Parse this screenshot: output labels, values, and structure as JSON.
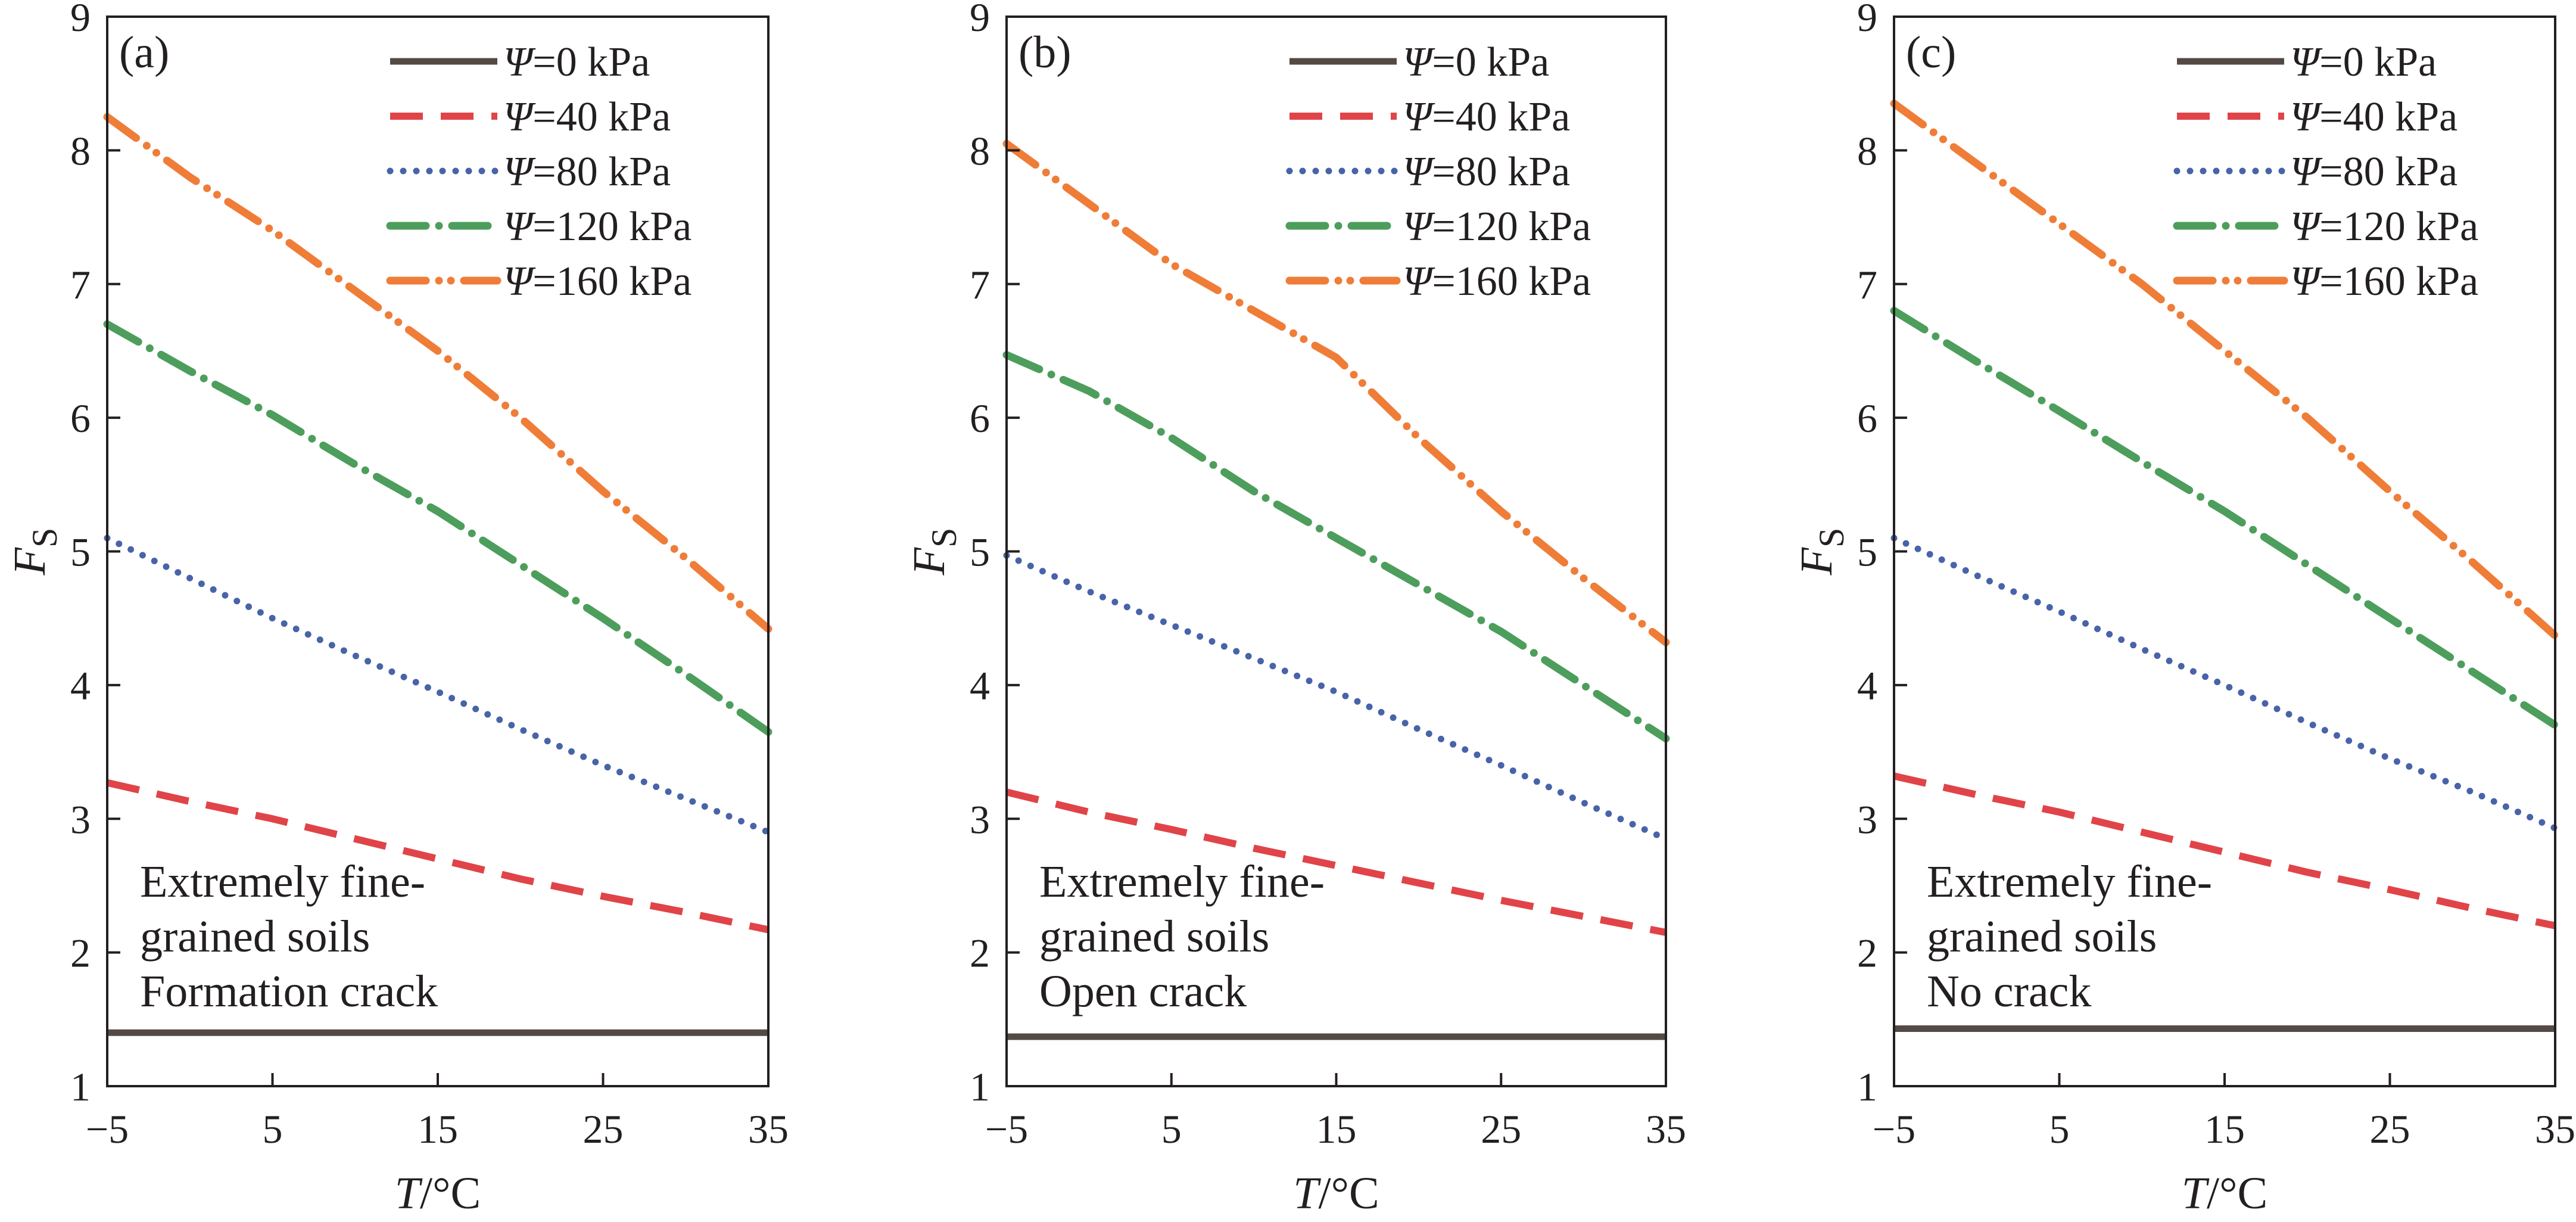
{
  "figure": {
    "description_label": "Safety factor Fs versus temperature T for different matric suctions"
  },
  "colors": {
    "axis": "#231f20",
    "psi_0": "#544a45",
    "psi_40": "#e04448",
    "psi_80": "#4863a8",
    "psi_120": "#4d9e5c",
    "psi_160": "#ef7d38"
  },
  "chart_data": [
    {
      "type": "line",
      "panel_label": "(a)",
      "xlabel": "T/°C",
      "ylabel": "FS",
      "xlim": [
        -5,
        35
      ],
      "ylim": [
        1,
        9
      ],
      "xticks": [
        -5,
        5,
        15,
        25,
        35
      ],
      "xtick_labels": [
        "−5",
        "5",
        "15",
        "25",
        "35"
      ],
      "yticks": [
        1,
        2,
        3,
        4,
        5,
        6,
        7,
        8,
        9
      ],
      "ytick_labels": [
        "1",
        "2",
        "3",
        "4",
        "5",
        "6",
        "7",
        "8",
        "9"
      ],
      "legend_position": "top-right",
      "annotation": [
        "Extremely fine-",
        "grained soils",
        "Formation crack"
      ],
      "x": [
        -5,
        0,
        5,
        10,
        15,
        20,
        25,
        30,
        35
      ],
      "series": [
        {
          "name": "Ψ=0 kPa",
          "symbol": "Ψ",
          "value_text": "=0 kPa",
          "style": "solid",
          "color_key": "psi_0",
          "values": [
            1.4,
            1.4,
            1.4,
            1.4,
            1.4,
            1.4,
            1.4,
            1.4,
            1.4
          ]
        },
        {
          "name": "Ψ=40 kPa",
          "symbol": "Ψ",
          "value_text": "=40 kPa",
          "style": "dash",
          "color_key": "psi_40",
          "values": [
            3.27,
            3.13,
            3.0,
            2.85,
            2.7,
            2.55,
            2.42,
            2.3,
            2.17
          ]
        },
        {
          "name": "Ψ=80 kPa",
          "symbol": "Ψ",
          "value_text": "=80 kPa",
          "style": "dot",
          "color_key": "psi_80",
          "values": [
            5.1,
            4.8,
            4.5,
            4.22,
            3.95,
            3.67,
            3.4,
            3.15,
            2.9
          ]
        },
        {
          "name": "Ψ=120 kPa",
          "symbol": "Ψ",
          "value_text": "=120 kPa",
          "style": "dashdot",
          "color_key": "psi_120",
          "values": [
            6.7,
            6.35,
            6.02,
            5.65,
            5.3,
            4.9,
            4.5,
            4.08,
            3.65
          ]
        },
        {
          "name": "Ψ=160 kPa",
          "symbol": "Ψ",
          "value_text": "=160 kPa",
          "style": "dashdotdot",
          "color_key": "psi_160",
          "values": [
            8.25,
            7.8,
            7.4,
            6.95,
            6.5,
            6.0,
            5.45,
            4.95,
            4.42
          ]
        }
      ]
    },
    {
      "type": "line",
      "panel_label": "(b)",
      "xlabel": "T/°C",
      "ylabel": "FS",
      "xlim": [
        -5,
        35
      ],
      "ylim": [
        1,
        9
      ],
      "xticks": [
        -5,
        5,
        15,
        25,
        35
      ],
      "xtick_labels": [
        "−5",
        "5",
        "15",
        "25",
        "35"
      ],
      "yticks": [
        1,
        2,
        3,
        4,
        5,
        6,
        7,
        8,
        9
      ],
      "ytick_labels": [
        "1",
        "2",
        "3",
        "4",
        "5",
        "6",
        "7",
        "8",
        "9"
      ],
      "legend_position": "top-right",
      "annotation": [
        "Extremely fine-",
        "grained soils",
        "Open crack"
      ],
      "x": [
        -5,
        0,
        5,
        10,
        15,
        20,
        25,
        30,
        35
      ],
      "series": [
        {
          "name": "Ψ=0 kPa",
          "symbol": "Ψ",
          "value_text": "=0 kPa",
          "style": "solid",
          "color_key": "psi_0",
          "values": [
            1.37,
            1.37,
            1.37,
            1.37,
            1.37,
            1.37,
            1.37,
            1.37,
            1.37
          ]
        },
        {
          "name": "Ψ=40 kPa",
          "symbol": "Ψ",
          "value_text": "=40 kPa",
          "style": "dash",
          "color_key": "psi_40",
          "values": [
            3.2,
            3.05,
            2.92,
            2.78,
            2.65,
            2.52,
            2.39,
            2.27,
            2.15
          ]
        },
        {
          "name": "Ψ=80 kPa",
          "symbol": "Ψ",
          "value_text": "=80 kPa",
          "style": "dot",
          "color_key": "psi_80",
          "values": [
            4.97,
            4.7,
            4.45,
            4.2,
            3.95,
            3.67,
            3.4,
            3.12,
            2.85
          ]
        },
        {
          "name": "Ψ=120 kPa",
          "symbol": "Ψ",
          "value_text": "=120 kPa",
          "style": "dashdot",
          "color_key": "psi_120",
          "values": [
            6.47,
            6.2,
            5.85,
            5.45,
            5.1,
            4.75,
            4.4,
            4.0,
            3.6
          ]
        },
        {
          "name": "Ψ=160 kPa",
          "symbol": "Ψ",
          "value_text": "=160 kPa",
          "style": "dashdotdot",
          "color_key": "psi_160",
          "values": [
            8.05,
            7.6,
            7.15,
            6.8,
            6.45,
            5.85,
            5.3,
            4.8,
            4.32
          ]
        }
      ]
    },
    {
      "type": "line",
      "panel_label": "(c)",
      "xlabel": "T/°C",
      "ylabel": "FS",
      "xlim": [
        -5,
        35
      ],
      "ylim": [
        1,
        9
      ],
      "xticks": [
        -5,
        5,
        15,
        25,
        35
      ],
      "xtick_labels": [
        "−5",
        "5",
        "15",
        "25",
        "35"
      ],
      "yticks": [
        1,
        2,
        3,
        4,
        5,
        6,
        7,
        8,
        9
      ],
      "ytick_labels": [
        "1",
        "2",
        "3",
        "4",
        "5",
        "6",
        "7",
        "8",
        "9"
      ],
      "legend_position": "top-right",
      "annotation": [
        "Extremely fine-",
        "grained soils",
        "No crack"
      ],
      "x": [
        -5,
        0,
        5,
        10,
        15,
        20,
        25,
        30,
        35
      ],
      "series": [
        {
          "name": "Ψ=0 kPa",
          "symbol": "Ψ",
          "value_text": "=0 kPa",
          "style": "solid",
          "color_key": "psi_0",
          "values": [
            1.43,
            1.43,
            1.43,
            1.43,
            1.43,
            1.43,
            1.43,
            1.43,
            1.43
          ]
        },
        {
          "name": "Ψ=40 kPa",
          "symbol": "Ψ",
          "value_text": "=40 kPa",
          "style": "dash",
          "color_key": "psi_40",
          "values": [
            3.32,
            3.18,
            3.05,
            2.9,
            2.75,
            2.6,
            2.47,
            2.33,
            2.2
          ]
        },
        {
          "name": "Ψ=80 kPa",
          "symbol": "Ψ",
          "value_text": "=80 kPa",
          "style": "dot",
          "color_key": "psi_80",
          "values": [
            5.1,
            4.82,
            4.55,
            4.27,
            4.0,
            3.72,
            3.45,
            3.2,
            2.93
          ]
        },
        {
          "name": "Ψ=120 kPa",
          "symbol": "Ψ",
          "value_text": "=120 kPa",
          "style": "dashdot",
          "color_key": "psi_120",
          "values": [
            6.8,
            6.42,
            6.05,
            5.67,
            5.3,
            4.9,
            4.5,
            4.1,
            3.7
          ]
        },
        {
          "name": "Ψ=160 kPa",
          "symbol": "Ψ",
          "value_text": "=160 kPa",
          "style": "dashdotdot",
          "color_key": "psi_160",
          "values": [
            8.35,
            7.9,
            7.45,
            7.0,
            6.5,
            6.0,
            5.45,
            4.92,
            4.37
          ]
        }
      ]
    }
  ]
}
